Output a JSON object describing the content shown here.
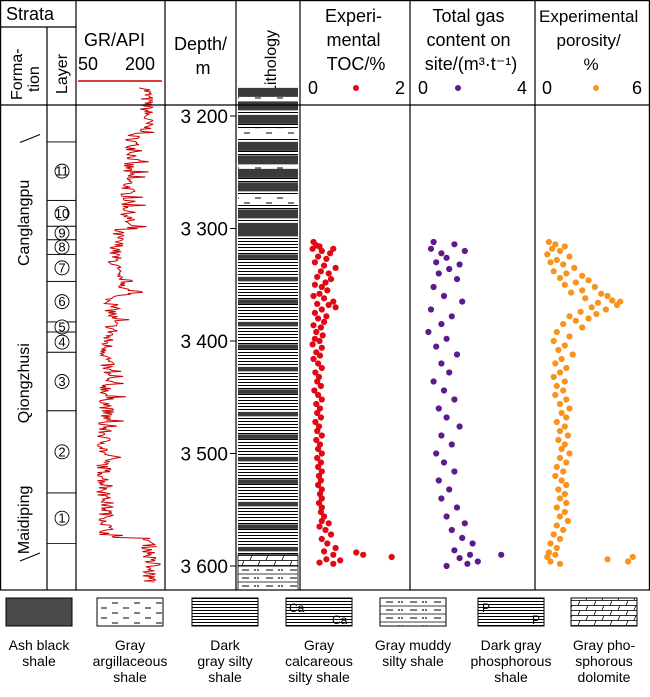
{
  "strata_header": "Strata",
  "formation_header": "Forma-\ntion",
  "layer_header": "Layer",
  "gr": {
    "title": "GR/API",
    "min_label": "50",
    "max_label": "200",
    "min": 50,
    "max": 200,
    "color": "#cc0000"
  },
  "depth": {
    "title": "Depth/\nm",
    "ticks": [
      {
        "value": 3200,
        "label": "3 200"
      },
      {
        "value": 3300,
        "label": "3 300"
      },
      {
        "value": 3400,
        "label": "3 400"
      },
      {
        "value": 3500,
        "label": "3 500"
      },
      {
        "value": 3600,
        "label": "3 600"
      }
    ]
  },
  "lithology_header": "Lithology",
  "formations": [
    {
      "name": "Canglangpu",
      "top": 3245,
      "bottom": 3345
    },
    {
      "name": "Qiongzhusi",
      "top": 3345,
      "bottom": 3530
    },
    {
      "name": "Maidiping",
      "top": 3530,
      "bottom": 3588
    }
  ],
  "layers": [
    "11",
    "10",
    "9",
    "8",
    "7",
    "6",
    "5",
    "4",
    "3",
    "2",
    "1"
  ],
  "chart_data": [
    {
      "type": "scatter",
      "title": "Experi-\nmental\nTOC/%",
      "xlim": [
        0,
        2
      ],
      "x_tick_labels": [
        "0",
        "2"
      ],
      "color": "#e30613",
      "y_axis": "Depth/m",
      "points": [
        [
          0.12,
          3312
        ],
        [
          0.18,
          3315
        ],
        [
          0.25,
          3316
        ],
        [
          0.1,
          3318
        ],
        [
          0.3,
          3320
        ],
        [
          0.55,
          3318
        ],
        [
          0.48,
          3322
        ],
        [
          0.22,
          3325
        ],
        [
          0.4,
          3327
        ],
        [
          0.15,
          3330
        ],
        [
          0.35,
          3333
        ],
        [
          0.6,
          3335
        ],
        [
          0.28,
          3338
        ],
        [
          0.45,
          3340
        ],
        [
          0.2,
          3343
        ],
        [
          0.5,
          3345
        ],
        [
          0.38,
          3348
        ],
        [
          0.15,
          3350
        ],
        [
          0.3,
          3352
        ],
        [
          0.42,
          3355
        ],
        [
          0.25,
          3358
        ],
        [
          0.12,
          3360
        ],
        [
          0.35,
          3362
        ],
        [
          0.55,
          3365
        ],
        [
          0.2,
          3367
        ],
        [
          0.45,
          3368
        ],
        [
          0.6,
          3370
        ],
        [
          0.3,
          3372
        ],
        [
          0.15,
          3375
        ],
        [
          0.4,
          3378
        ],
        [
          0.22,
          3380
        ],
        [
          0.35,
          3383
        ],
        [
          0.12,
          3386
        ],
        [
          0.28,
          3388
        ],
        [
          0.18,
          3392
        ],
        [
          0.32,
          3395
        ],
        [
          0.15,
          3398
        ],
        [
          0.25,
          3400
        ],
        [
          0.1,
          3403
        ],
        [
          0.3,
          3406
        ],
        [
          0.18,
          3410
        ],
        [
          0.26,
          3413
        ],
        [
          0.12,
          3416
        ],
        [
          0.22,
          3420
        ],
        [
          0.3,
          3424
        ],
        [
          0.16,
          3428
        ],
        [
          0.24,
          3432
        ],
        [
          0.2,
          3436
        ],
        [
          0.28,
          3440
        ],
        [
          0.14,
          3444
        ],
        [
          0.22,
          3448
        ],
        [
          0.3,
          3452
        ],
        [
          0.18,
          3456
        ],
        [
          0.26,
          3460
        ],
        [
          0.2,
          3464
        ],
        [
          0.28,
          3468
        ],
        [
          0.16,
          3472
        ],
        [
          0.24,
          3476
        ],
        [
          0.2,
          3480
        ],
        [
          0.3,
          3484
        ],
        [
          0.18,
          3488
        ],
        [
          0.26,
          3492
        ],
        [
          0.22,
          3496
        ],
        [
          0.3,
          3500
        ],
        [
          0.2,
          3504
        ],
        [
          0.28,
          3508
        ],
        [
          0.22,
          3512
        ],
        [
          0.3,
          3516
        ],
        [
          0.24,
          3520
        ],
        [
          0.28,
          3524
        ],
        [
          0.22,
          3528
        ],
        [
          0.3,
          3532
        ],
        [
          0.26,
          3536
        ],
        [
          0.3,
          3540
        ],
        [
          0.24,
          3544
        ],
        [
          0.3,
          3548
        ],
        [
          0.28,
          3552
        ],
        [
          0.35,
          3556
        ],
        [
          0.3,
          3560
        ],
        [
          0.45,
          3562
        ],
        [
          0.25,
          3565
        ],
        [
          0.38,
          3568
        ],
        [
          0.5,
          3572
        ],
        [
          0.3,
          3576
        ],
        [
          0.42,
          3580
        ],
        [
          0.6,
          3584
        ],
        [
          0.35,
          3587
        ],
        [
          0.55,
          3590
        ],
        [
          1.05,
          3588
        ],
        [
          1.2,
          3590
        ],
        [
          1.82,
          3592
        ],
        [
          0.4,
          3594
        ],
        [
          0.7,
          3595
        ],
        [
          0.25,
          3597
        ],
        [
          0.55,
          3598
        ]
      ]
    },
    {
      "type": "scatter",
      "title": "Total gas\ncontent on\nsite/(m³·t⁻¹)",
      "xlim": [
        0,
        4
      ],
      "x_tick_labels": [
        "0",
        "4"
      ],
      "color": "#5c1a8c",
      "y_axis": "Depth/m",
      "points": [
        [
          0.6,
          3312
        ],
        [
          1.4,
          3314
        ],
        [
          0.5,
          3318
        ],
        [
          0.9,
          3322
        ],
        [
          1.8,
          3320
        ],
        [
          1.1,
          3326
        ],
        [
          0.7,
          3330
        ],
        [
          1.6,
          3332
        ],
        [
          1.2,
          3336
        ],
        [
          0.8,
          3340
        ],
        [
          1.5,
          3345
        ],
        [
          0.6,
          3352
        ],
        [
          1.0,
          3360
        ],
        [
          1.7,
          3365
        ],
        [
          0.5,
          3372
        ],
        [
          1.3,
          3378
        ],
        [
          0.9,
          3385
        ],
        [
          0.4,
          3392
        ],
        [
          1.1,
          3398
        ],
        [
          0.7,
          3405
        ],
        [
          1.5,
          3412
        ],
        [
          0.9,
          3420
        ],
        [
          1.2,
          3428
        ],
        [
          0.6,
          3436
        ],
        [
          1.0,
          3444
        ],
        [
          1.4,
          3452
        ],
        [
          0.8,
          3460
        ],
        [
          1.1,
          3468
        ],
        [
          1.6,
          3476
        ],
        [
          0.9,
          3484
        ],
        [
          1.3,
          3492
        ],
        [
          0.7,
          3500
        ],
        [
          1.0,
          3508
        ],
        [
          1.4,
          3516
        ],
        [
          0.8,
          3524
        ],
        [
          1.2,
          3532
        ],
        [
          0.9,
          3540
        ],
        [
          1.5,
          3548
        ],
        [
          1.1,
          3556
        ],
        [
          1.8,
          3562
        ],
        [
          1.3,
          3568
        ],
        [
          1.7,
          3575
        ],
        [
          2.1,
          3580
        ],
        [
          1.4,
          3586
        ],
        [
          2.0,
          3590
        ],
        [
          1.6,
          3593
        ],
        [
          3.2,
          3590
        ],
        [
          2.3,
          3596
        ],
        [
          1.9,
          3598
        ],
        [
          1.1,
          3600
        ]
      ]
    },
    {
      "type": "scatter",
      "title": "Experimental\nporosity/\n%",
      "xlim": [
        0,
        6
      ],
      "x_tick_labels": [
        "0",
        "6"
      ],
      "color": "#f7941d",
      "y_axis": "Depth/m",
      "points": [
        [
          0.5,
          3312
        ],
        [
          0.9,
          3314
        ],
        [
          1.5,
          3316
        ],
        [
          0.7,
          3318
        ],
        [
          1.2,
          3320
        ],
        [
          0.4,
          3323
        ],
        [
          1.8,
          3325
        ],
        [
          1.0,
          3328
        ],
        [
          0.6,
          3330
        ],
        [
          1.4,
          3332
        ],
        [
          2.1,
          3335
        ],
        [
          0.8,
          3338
        ],
        [
          1.6,
          3340
        ],
        [
          2.6,
          3342
        ],
        [
          1.2,
          3344
        ],
        [
          3.0,
          3346
        ],
        [
          2.2,
          3348
        ],
        [
          1.5,
          3350
        ],
        [
          3.4,
          3352
        ],
        [
          2.6,
          3355
        ],
        [
          1.9,
          3357
        ],
        [
          3.8,
          3358
        ],
        [
          4.2,
          3360
        ],
        [
          2.8,
          3362
        ],
        [
          4.5,
          3364
        ],
        [
          3.6,
          3366
        ],
        [
          5.0,
          3365
        ],
        [
          4.8,
          3368
        ],
        [
          3.2,
          3370
        ],
        [
          4.1,
          3372
        ],
        [
          2.5,
          3374
        ],
        [
          3.5,
          3376
        ],
        [
          1.8,
          3378
        ],
        [
          3.0,
          3380
        ],
        [
          2.2,
          3382
        ],
        [
          1.4,
          3385
        ],
        [
          2.6,
          3388
        ],
        [
          1.0,
          3392
        ],
        [
          1.8,
          3396
        ],
        [
          0.8,
          3400
        ],
        [
          1.5,
          3404
        ],
        [
          1.1,
          3408
        ],
        [
          2.0,
          3412
        ],
        [
          1.3,
          3416
        ],
        [
          0.9,
          3420
        ],
        [
          1.6,
          3424
        ],
        [
          1.2,
          3428
        ],
        [
          0.8,
          3432
        ],
        [
          1.5,
          3436
        ],
        [
          1.0,
          3440
        ],
        [
          1.4,
          3444
        ],
        [
          0.9,
          3448
        ],
        [
          1.6,
          3452
        ],
        [
          1.2,
          3456
        ],
        [
          1.8,
          3460
        ],
        [
          1.3,
          3464
        ],
        [
          1.6,
          3468
        ],
        [
          1.0,
          3472
        ],
        [
          1.5,
          3476
        ],
        [
          1.2,
          3480
        ],
        [
          1.7,
          3484
        ],
        [
          1.1,
          3488
        ],
        [
          1.5,
          3492
        ],
        [
          1.3,
          3496
        ],
        [
          1.8,
          3500
        ],
        [
          1.2,
          3504
        ],
        [
          1.6,
          3508
        ],
        [
          1.0,
          3512
        ],
        [
          1.4,
          3516
        ],
        [
          0.9,
          3520
        ],
        [
          1.3,
          3524
        ],
        [
          1.6,
          3528
        ],
        [
          1.1,
          3532
        ],
        [
          1.5,
          3536
        ],
        [
          1.2,
          3540
        ],
        [
          1.6,
          3544
        ],
        [
          1.0,
          3548
        ],
        [
          1.5,
          3552
        ],
        [
          1.2,
          3556
        ],
        [
          1.7,
          3560
        ],
        [
          1.0,
          3564
        ],
        [
          1.4,
          3568
        ],
        [
          0.8,
          3572
        ],
        [
          1.2,
          3576
        ],
        [
          0.6,
          3580
        ],
        [
          1.0,
          3584
        ],
        [
          0.5,
          3588
        ],
        [
          0.9,
          3590
        ],
        [
          0.4,
          3592
        ],
        [
          4.2,
          3594
        ],
        [
          5.8,
          3592
        ],
        [
          5.5,
          3596
        ],
        [
          0.6,
          3596
        ],
        [
          1.2,
          3598
        ]
      ]
    }
  ],
  "legend": [
    {
      "key": "ash-black-shale",
      "label": "Ash black\nshale"
    },
    {
      "key": "gray-argillaceous-shale",
      "label": "Gray\nargillaceous\nshale"
    },
    {
      "key": "dark-gray-silty-shale",
      "label": "Dark\ngray silty\nshale"
    },
    {
      "key": "gray-calcareous-silty-shale",
      "label": "Gray\ncalcareous\nsilty shale"
    },
    {
      "key": "gray-muddy-silty-shale",
      "label": "Gray muddy\nsilty shale"
    },
    {
      "key": "dark-gray-phosphorous-shale",
      "label": "Dark gray\nphosphorous\nshale"
    },
    {
      "key": "gray-phosphorous-dolomite",
      "label": "Gray pho-\nsphorous\ndolomite"
    }
  ]
}
